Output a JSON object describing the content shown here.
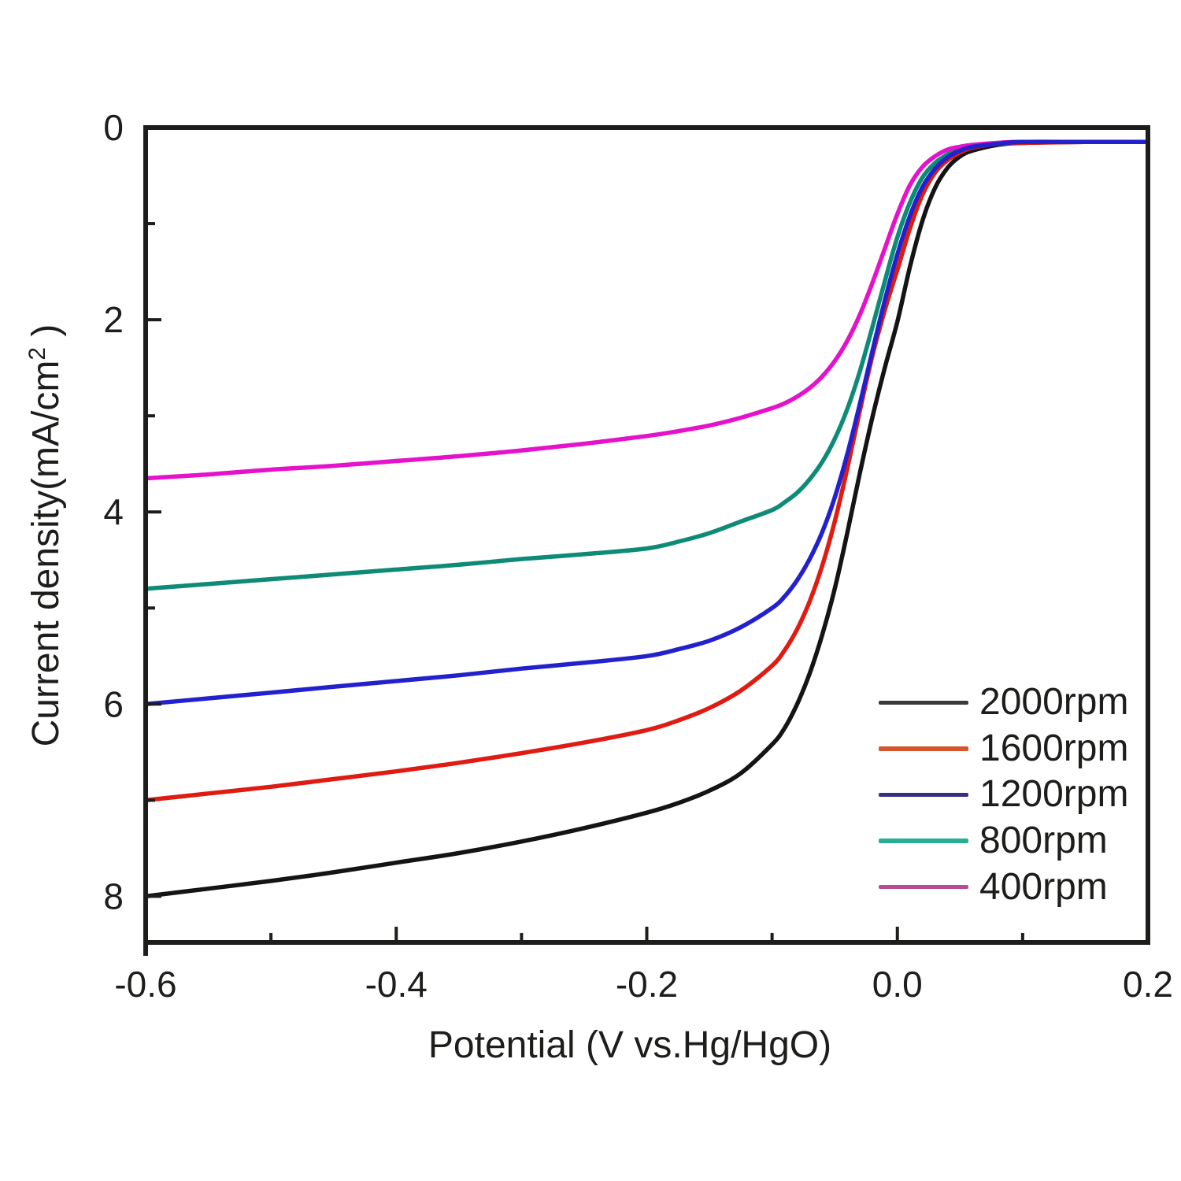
{
  "figure": {
    "background": "#ffffff",
    "text_color": "#1d1d1b",
    "frame_color": "#1d1d1b"
  },
  "chart_data": {
    "type": "line",
    "title": "",
    "xlabel": "Potential (V vs.Hg/HgO)",
    "ylabel": {
      "base": "Current density(mA/cm",
      "sup": "2",
      "end": " )"
    },
    "legend_position": "lower right",
    "grid": false,
    "axes": {
      "x": {
        "min": -0.6,
        "max": 0.2,
        "major_ticks": [
          -0.6,
          -0.4,
          -0.2,
          0.0,
          0.2
        ],
        "minor_ticks": [
          -0.5,
          -0.3,
          -0.1,
          0.1
        ],
        "tick_labels": [
          "-0.6",
          "-0.4",
          "-0.2",
          "0.0",
          "0.2"
        ]
      },
      "y": {
        "min": 0,
        "max": 8.48,
        "inverted_display": "0 at top, current density magnitude increases downward",
        "major_ticks": [
          0,
          2,
          4,
          6,
          8
        ],
        "minor_ticks": [
          1,
          3,
          5,
          7
        ],
        "tick_labels": [
          "0",
          "2",
          "4",
          "6",
          "8"
        ]
      }
    },
    "x": [
      -0.6,
      -0.55,
      -0.5,
      -0.45,
      -0.4,
      -0.35,
      -0.3,
      -0.25,
      -0.2,
      -0.175,
      -0.15,
      -0.125,
      -0.1,
      -0.09,
      -0.08,
      -0.07,
      -0.06,
      -0.05,
      -0.04,
      -0.03,
      -0.02,
      -0.01,
      0.0,
      0.01,
      0.02,
      0.03,
      0.04,
      0.05,
      0.06,
      0.08,
      0.1,
      0.15,
      0.2
    ],
    "series": [
      {
        "name": "2000rpm",
        "color": "#141414",
        "legend_color": "#3a3a3a",
        "limiting_current_mA_cm2": 8.0,
        "values": [
          8.0,
          7.92,
          7.84,
          7.75,
          7.65,
          7.55,
          7.43,
          7.29,
          7.13,
          7.03,
          6.9,
          6.72,
          6.42,
          6.25,
          6.0,
          5.68,
          5.28,
          4.8,
          4.22,
          3.6,
          3.02,
          2.5,
          2.02,
          1.45,
          0.97,
          0.63,
          0.42,
          0.3,
          0.24,
          0.18,
          0.16,
          0.15,
          0.15
        ]
      },
      {
        "name": "1600rpm",
        "color": "#df1b12",
        "legend_color": "#d4562c",
        "limiting_current_mA_cm2": 7.0,
        "values": [
          7.0,
          6.93,
          6.86,
          6.78,
          6.7,
          6.61,
          6.51,
          6.4,
          6.27,
          6.17,
          6.04,
          5.86,
          5.6,
          5.44,
          5.22,
          4.93,
          4.56,
          4.1,
          3.55,
          2.95,
          2.38,
          1.9,
          1.48,
          1.05,
          0.7,
          0.47,
          0.34,
          0.26,
          0.21,
          0.17,
          0.16,
          0.15,
          0.15
        ]
      },
      {
        "name": "1200rpm",
        "color": "#2320cd",
        "legend_color": "#38307f",
        "limiting_current_mA_cm2": 6.0,
        "values": [
          6.0,
          5.94,
          5.88,
          5.82,
          5.76,
          5.7,
          5.63,
          5.57,
          5.5,
          5.43,
          5.34,
          5.2,
          5.0,
          4.88,
          4.71,
          4.49,
          4.21,
          3.85,
          3.4,
          2.88,
          2.33,
          1.8,
          1.32,
          0.92,
          0.62,
          0.43,
          0.31,
          0.24,
          0.2,
          0.17,
          0.15,
          0.15,
          0.15
        ]
      },
      {
        "name": "800rpm",
        "color": "#0d8b77",
        "legend_color": "#28ae93",
        "limiting_current_mA_cm2": 4.8,
        "values": [
          4.8,
          4.75,
          4.7,
          4.65,
          4.6,
          4.55,
          4.49,
          4.44,
          4.38,
          4.31,
          4.22,
          4.1,
          3.98,
          3.9,
          3.8,
          3.66,
          3.48,
          3.24,
          2.93,
          2.54,
          2.08,
          1.6,
          1.14,
          0.78,
          0.52,
          0.37,
          0.28,
          0.22,
          0.19,
          0.16,
          0.15,
          0.15,
          0.15
        ]
      },
      {
        "name": "400rpm",
        "color": "#e512cc",
        "legend_color": "#b94b93",
        "limiting_current_mA_cm2": 3.65,
        "values": [
          3.65,
          3.61,
          3.56,
          3.52,
          3.47,
          3.42,
          3.36,
          3.29,
          3.21,
          3.16,
          3.1,
          3.02,
          2.92,
          2.87,
          2.8,
          2.71,
          2.59,
          2.43,
          2.22,
          1.95,
          1.62,
          1.26,
          0.9,
          0.6,
          0.41,
          0.3,
          0.23,
          0.2,
          0.18,
          0.16,
          0.15,
          0.15,
          0.15
        ]
      }
    ],
    "draw_order": [
      3,
      0,
      1,
      4,
      2
    ]
  }
}
